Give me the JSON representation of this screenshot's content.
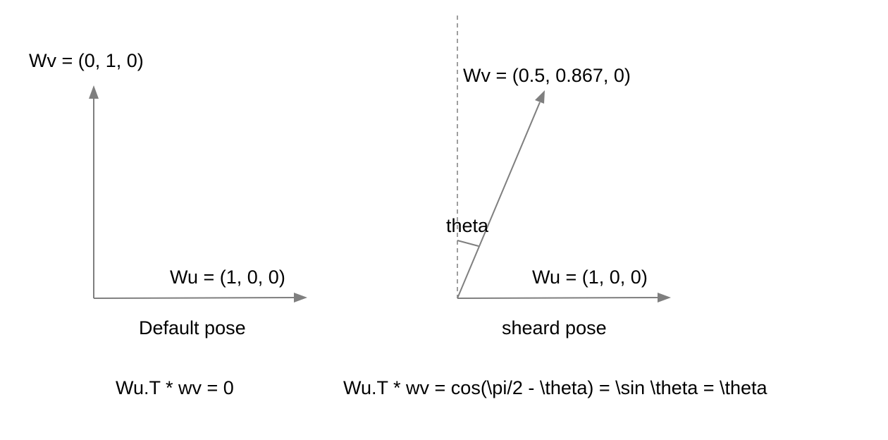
{
  "default_panel": {
    "wv_label": "Wv = (0, 1, 0)",
    "wu_label": "Wu = (1, 0, 0)",
    "caption": "Default pose",
    "equation": "Wu.T * wv = 0"
  },
  "sheared_panel": {
    "wv_label": "Wv = (0.5, 0.867, 0)",
    "wu_label": "Wu = (1, 0, 0)",
    "angle_label": "theta",
    "caption": "sheard pose",
    "equation": "Wu.T * wv =  cos(\\pi/2 - \\theta) = \\sin \\theta = \\theta"
  },
  "colors": {
    "arrow": "#7f7f7f",
    "text": "#000000"
  }
}
